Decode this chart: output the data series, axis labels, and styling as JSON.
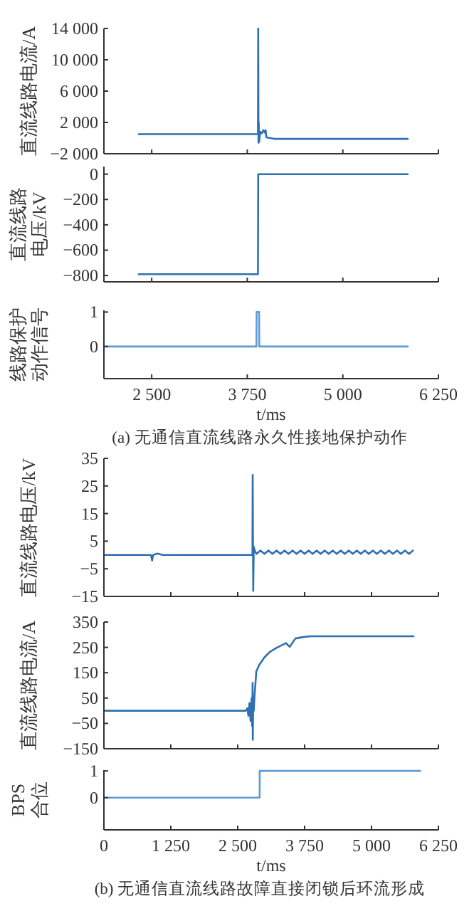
{
  "chart_data": [
    {
      "type": "line",
      "ylabel": "直流线路电流/A",
      "tick_labels": "y",
      "xlim": [
        1875,
        6250
      ],
      "xticks": [
        2500,
        3750,
        5000,
        6250
      ],
      "ylim": [
        -2000,
        14000
      ],
      "yticks": [
        {
          "value": -2000,
          "label": "−2 000"
        },
        {
          "value": 2000,
          "label": "2 000"
        },
        {
          "value": 6000,
          "label": "6 000"
        },
        {
          "value": 10000,
          "label": "10 000"
        },
        {
          "value": 14000,
          "label": "14 000"
        }
      ],
      "x": [
        2330,
        3880,
        3890,
        3893,
        3897,
        3900,
        3905,
        3920,
        3940,
        3960,
        3980,
        3990,
        4000,
        4050,
        4100,
        5850
      ],
      "series": [
        {
          "color": "#2e70b0",
          "values": [
            500,
            500,
            500,
            14000,
            -600,
            2000,
            -500,
            800,
            600,
            1000,
            700,
            1000,
            100,
            0,
            -100,
            -100
          ]
        }
      ]
    },
    {
      "type": "line",
      "ylabel": [
        "直流线路",
        "电压/kV"
      ],
      "tick_labels": "y",
      "xlim": [
        1875,
        6250
      ],
      "xticks": [
        2500,
        3750,
        5000,
        6250
      ],
      "ylim": [
        -850,
        60
      ],
      "yticks": [
        {
          "value": -800,
          "label": "−800"
        },
        {
          "value": -600,
          "label": "−600"
        },
        {
          "value": -400,
          "label": "−400"
        },
        {
          "value": -200,
          "label": "−200"
        },
        0
      ],
      "x": [
        2330,
        3890,
        3893,
        5850
      ],
      "series": [
        {
          "color": "#2e70b0",
          "values": [
            -790,
            -790,
            0,
            0
          ]
        }
      ]
    },
    {
      "type": "line",
      "ylabel": [
        "线路保护",
        "动作信号"
      ],
      "xlabel": "t/ms",
      "annotations": [
        "(a) 无通信直流线路永久性接地保护动作"
      ],
      "xlim": [
        1875,
        6250
      ],
      "xticks": [
        {
          "value": 2500,
          "label": "2 500"
        },
        {
          "value": 3750,
          "label": "3 750"
        },
        {
          "value": 5000,
          "label": "5 000"
        },
        {
          "value": 6250,
          "label": "6 250"
        }
      ],
      "ylim": [
        -0.93,
        1.05
      ],
      "yticks": [
        0,
        1
      ],
      "x": [
        1875,
        3870,
        3872,
        3905,
        3907,
        5850
      ],
      "series": [
        {
          "color": "#5b9bd5",
          "values": [
            0,
            0,
            1,
            1,
            0,
            0
          ]
        }
      ]
    },
    {
      "type": "line",
      "ylabel": "直流线路电压/kV",
      "tick_labels": "y",
      "xlim": [
        0,
        6250
      ],
      "xticks": [
        0,
        1250,
        2500,
        3750,
        5000,
        6250
      ],
      "ylim": [
        -15,
        35
      ],
      "yticks": [
        {
          "value": -15,
          "label": "−15"
        },
        {
          "value": -5,
          "label": "−5"
        },
        5,
        15,
        25,
        35
      ],
      "x": [
        0,
        880,
        900,
        920,
        1000,
        1100,
        2750,
        2775,
        2780,
        2785,
        2790,
        2800,
        2820,
        2850,
        2925,
        3000,
        3075,
        3150,
        3225,
        3300,
        3375,
        3450,
        3525,
        3600,
        3675,
        3750,
        3825,
        3900,
        3975,
        4050,
        4125,
        4200,
        4275,
        4350,
        4425,
        4500,
        4575,
        4650,
        4725,
        4800,
        4875,
        4950,
        5025,
        5100,
        5175,
        5250,
        5325,
        5400,
        5475,
        5550,
        5625,
        5700,
        5775
      ],
      "series": [
        {
          "color": "#2e70b0",
          "values": [
            0,
            0,
            -2,
            0,
            0.5,
            0,
            0,
            0,
            29,
            5,
            -13,
            3,
            1.5,
            0.4,
            1.6,
            0.4,
            1.6,
            0.4,
            1.6,
            0.4,
            1.6,
            0.4,
            1.6,
            0.4,
            1.6,
            0.4,
            1.6,
            0.4,
            1.6,
            0.4,
            1.6,
            0.4,
            1.6,
            0.4,
            1.6,
            0.4,
            1.6,
            0.4,
            1.6,
            0.4,
            1.6,
            0.4,
            1.6,
            0.4,
            1.6,
            0.4,
            1.6,
            0.4,
            1.6,
            0.4,
            1.6,
            0.4,
            1.6
          ]
        }
      ]
    },
    {
      "type": "line",
      "ylabel": "直流线路电流/A",
      "tick_labels": "y",
      "xlim": [
        0,
        6250
      ],
      "xticks": [
        0,
        1250,
        2500,
        3750,
        5000,
        6250
      ],
      "ylim": [
        -150,
        350
      ],
      "yticks": [
        {
          "value": -150,
          "label": "−150"
        },
        {
          "value": -50,
          "label": "−50"
        },
        50,
        150,
        250,
        350
      ],
      "x": [
        0,
        2650,
        2680,
        2700,
        2720,
        2740,
        2760,
        2770,
        2778,
        2782,
        2790,
        2800,
        2815,
        2848,
        2900,
        3000,
        3100,
        3222,
        3400,
        3471,
        3578,
        3700,
        3846,
        5786
      ],
      "series": [
        {
          "color": "#2e70b0",
          "values": [
            0,
            0,
            10,
            -20,
            30,
            -40,
            50,
            -60,
            110,
            -115,
            40,
            0,
            60,
            155,
            180,
            211,
            232,
            248,
            267,
            252,
            285,
            290,
            294,
            294
          ]
        }
      ]
    },
    {
      "type": "line",
      "ylabel": [
        "BPS",
        "合位"
      ],
      "xlabel": "t/ms",
      "annotations": [
        "(b) 无通信直流线路故障直接闭锁后环流形成"
      ],
      "xlim": [
        0,
        6250
      ],
      "xticks": [
        0,
        {
          "value": 1250,
          "label": "1 250"
        },
        {
          "value": 2500,
          "label": "2 500"
        },
        {
          "value": 3750,
          "label": "3 750"
        },
        {
          "value": 5000,
          "label": "5 000"
        },
        {
          "value": 6250,
          "label": "6 250"
        }
      ],
      "ylim": [
        -1.2,
        1.03
      ],
      "yticks": [
        0,
        1
      ],
      "x": [
        0,
        2910,
        2911,
        5910
      ],
      "series": [
        {
          "color": "#5b9bd5",
          "values": [
            0,
            0,
            1,
            1
          ]
        }
      ]
    }
  ]
}
